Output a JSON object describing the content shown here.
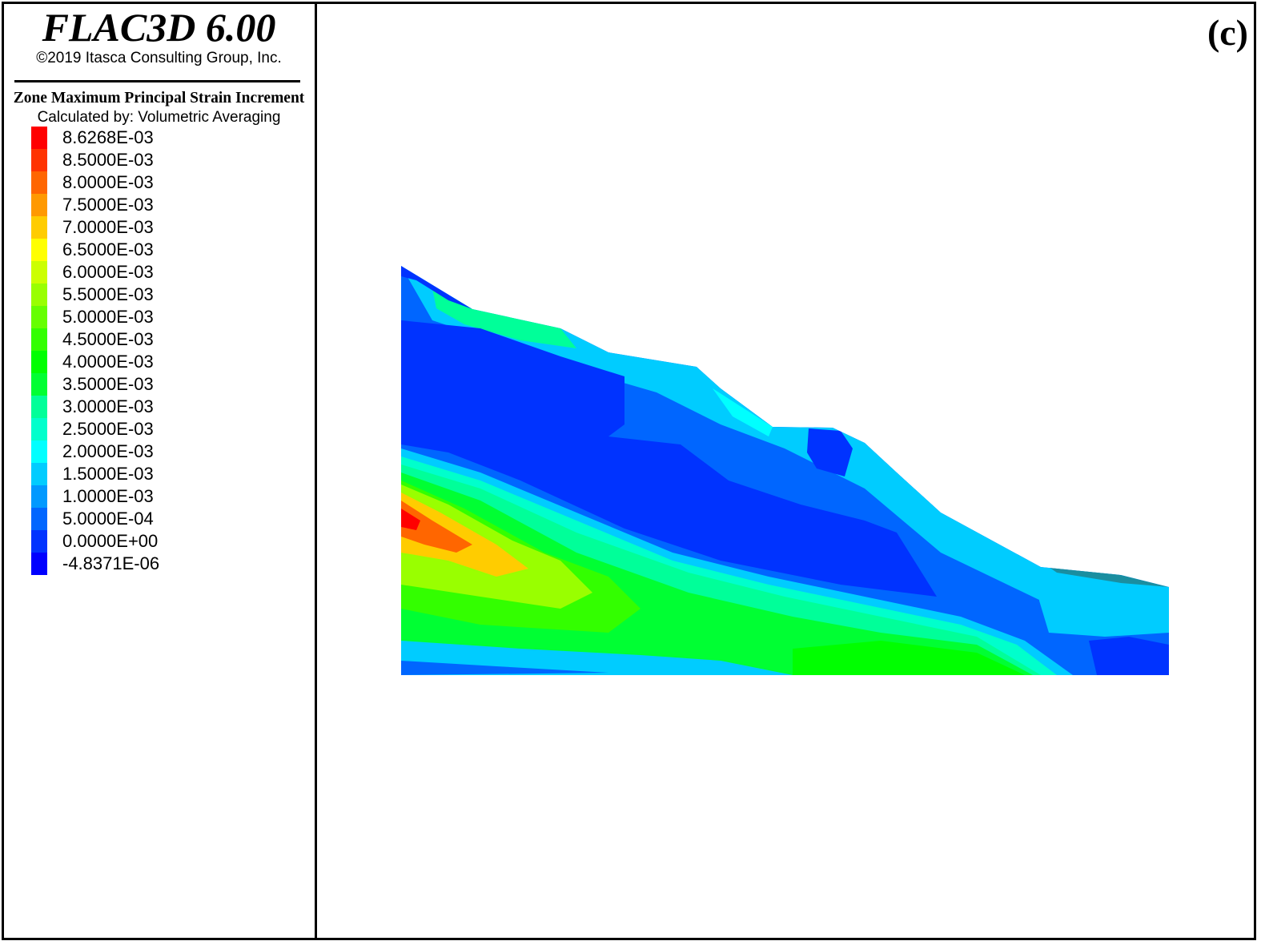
{
  "header": {
    "app_title": "FLAC3D 6.00",
    "copyright": "©2019 Itasca Consulting Group, Inc."
  },
  "panel_label": "(c)",
  "chart_data": {
    "type": "heatmap",
    "title": "Zone Maximum Principal Strain Increment",
    "subtitle": "Calculated by: Volumetric Averaging",
    "xlabel": "",
    "ylabel": "",
    "legend": {
      "placement": "left",
      "entries": [
        {
          "label": "8.6268E-03",
          "color": "#ff0000"
        },
        {
          "label": "8.5000E-03",
          "color": "#ff3300"
        },
        {
          "label": "8.0000E-03",
          "color": "#ff6600"
        },
        {
          "label": "7.5000E-03",
          "color": "#ff9900"
        },
        {
          "label": "7.0000E-03",
          "color": "#ffcc00"
        },
        {
          "label": "6.5000E-03",
          "color": "#ffff00"
        },
        {
          "label": "6.0000E-03",
          "color": "#ccff00"
        },
        {
          "label": "5.5000E-03",
          "color": "#99ff00"
        },
        {
          "label": "5.0000E-03",
          "color": "#66ff00"
        },
        {
          "label": "4.5000E-03",
          "color": "#33ff00"
        },
        {
          "label": "4.0000E-03",
          "color": "#00ff00"
        },
        {
          "label": "3.5000E-03",
          "color": "#00ff33"
        },
        {
          "label": "3.0000E-03",
          "color": "#00ff99"
        },
        {
          "label": "2.5000E-03",
          "color": "#00ffcc"
        },
        {
          "label": "2.0000E-03",
          "color": "#00ffff"
        },
        {
          "label": "1.5000E-03",
          "color": "#00ccff"
        },
        {
          "label": "1.0000E-03",
          "color": "#0099ff"
        },
        {
          "label": "5.0000E-04",
          "color": "#0066ff"
        },
        {
          "label": "0.0000E+00",
          "color": "#0033ff"
        },
        {
          "label": "-4.8371E-06",
          "color": "#0000ff"
        }
      ]
    },
    "value_range": [
      -4.8371e-06,
      0.0086268
    ],
    "grid": false
  }
}
